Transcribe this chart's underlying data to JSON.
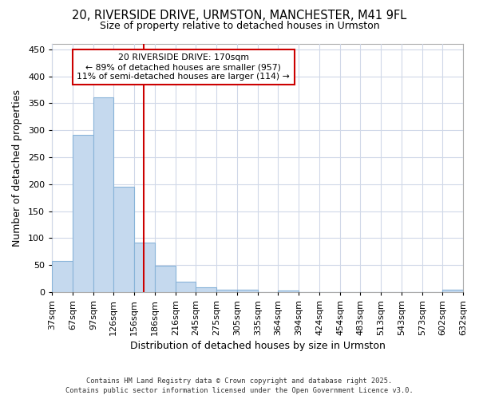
{
  "title": "20, RIVERSIDE DRIVE, URMSTON, MANCHESTER, M41 9FL",
  "subtitle": "Size of property relative to detached houses in Urmston",
  "xlabel": "Distribution of detached houses by size in Urmston",
  "ylabel": "Number of detached properties",
  "footer1": "Contains HM Land Registry data © Crown copyright and database right 2025.",
  "footer2": "Contains public sector information licensed under the Open Government Licence v3.0.",
  "annotation_line1": "20 RIVERSIDE DRIVE: 170sqm",
  "annotation_line2": "← 89% of detached houses are smaller (957)",
  "annotation_line3": "11% of semi-detached houses are larger (114) →",
  "property_size": 170,
  "bar_color": "#c5d9ee",
  "bar_edgecolor": "#89b4d9",
  "vline_color": "#cc0000",
  "annotation_box_edgecolor": "#cc0000",
  "annotation_box_facecolor": "#ffffff",
  "background_color": "#ffffff",
  "grid_color": "#d0d8e8",
  "bins": [
    37,
    67,
    97,
    126,
    156,
    186,
    216,
    245,
    275,
    305,
    335,
    364,
    394,
    424,
    454,
    483,
    513,
    543,
    573,
    602,
    632
  ],
  "bin_labels": [
    "37sqm",
    "67sqm",
    "97sqm",
    "126sqm",
    "156sqm",
    "186sqm",
    "216sqm",
    "245sqm",
    "275sqm",
    "305sqm",
    "335sqm",
    "364sqm",
    "394sqm",
    "424sqm",
    "454sqm",
    "483sqm",
    "513sqm",
    "543sqm",
    "573sqm",
    "602sqm",
    "632sqm"
  ],
  "bar_heights": [
    58,
    291,
    361,
    195,
    92,
    49,
    19,
    8,
    5,
    5,
    0,
    3,
    0,
    0,
    0,
    0,
    0,
    0,
    0,
    4
  ],
  "ylim": [
    0,
    460
  ],
  "yticks": [
    0,
    50,
    100,
    150,
    200,
    250,
    300,
    350,
    400,
    450
  ]
}
